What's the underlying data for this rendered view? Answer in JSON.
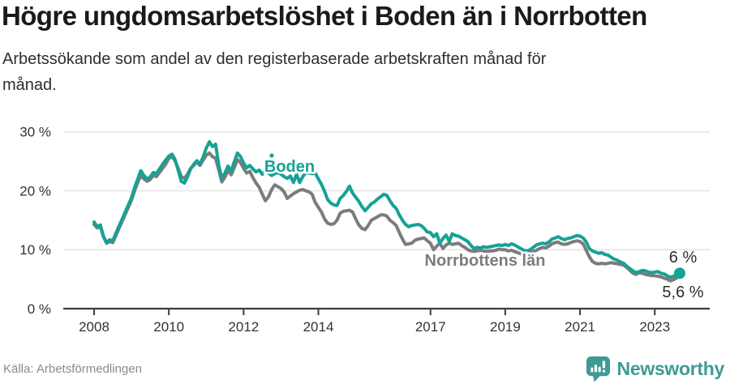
{
  "header": {
    "title": "Högre ungdomsarbetslöshet i Boden än i Norrbotten",
    "subtitle": "Arbetssökande som andel av den registerbaserade arbetskraften månad för månad."
  },
  "footer": {
    "source": "Källa: Arbetsförmedlingen",
    "brand": "Newsworthy"
  },
  "colors": {
    "boden": "#16a294",
    "norrbotten": "#7c7c7c",
    "axis_text": "#333333",
    "annotation_text": "#2e2e2e",
    "gridline": "#e3e3e3",
    "axis_line": "#3c3c3c",
    "brand_teal": "#3f9a94",
    "title_text": "#1a1a1a"
  },
  "chart_data": {
    "type": "line",
    "title": "Högre ungdomsarbetslöshet i Boden än i Norrbotten",
    "subtitle": "Arbetssökande som andel av den registerbaserade arbetskraften månad för månad.",
    "x_start_year": 2008,
    "x_start_month": 1,
    "frequency": "monthly",
    "x_tick_years": [
      2008,
      2010,
      2012,
      2014,
      2017,
      2019,
      2021,
      2023
    ],
    "y_ticks": [
      {
        "value": 30,
        "label": "30 %"
      },
      {
        "value": 20,
        "label": "20 %"
      },
      {
        "value": 10,
        "label": "10 %"
      },
      {
        "value": 0,
        "label": "0 %"
      }
    ],
    "ylim": [
      0,
      30
    ],
    "grid": "horizontal",
    "legend": "inline-labels",
    "series": [
      {
        "name": "Norrbottens län",
        "color": "#7c7c7c",
        "end_label": "5,6 %",
        "end_value": 5.6,
        "values": [
          14.3,
          13.7,
          13.9,
          12.2,
          11.1,
          11.4,
          11.2,
          12.4,
          13.6,
          14.8,
          16.0,
          17.2,
          18.4,
          20.0,
          21.4,
          22.6,
          22.0,
          21.6,
          21.9,
          22.6,
          22.4,
          23.1,
          23.8,
          24.5,
          25.5,
          25.8,
          25.1,
          23.8,
          22.4,
          22.1,
          22.8,
          23.8,
          24.3,
          24.9,
          24.3,
          25.2,
          26.0,
          26.4,
          25.8,
          25.5,
          23.6,
          21.5,
          22.3,
          23.4,
          22.7,
          23.9,
          25.3,
          24.8,
          23.8,
          23.0,
          23.3,
          22.2,
          21.3,
          20.6,
          19.4,
          18.3,
          19.0,
          20.2,
          21.0,
          20.7,
          20.4,
          19.8,
          18.7,
          19.1,
          19.5,
          19.8,
          20.1,
          20.2,
          20.0,
          19.8,
          19.4,
          18.0,
          17.2,
          16.4,
          15.2,
          14.5,
          14.3,
          14.4,
          15.0,
          16.2,
          16.5,
          16.6,
          16.7,
          16.4,
          15.2,
          14.2,
          13.6,
          13.4,
          14.1,
          15.0,
          15.3,
          15.6,
          15.9,
          15.9,
          15.7,
          15.0,
          14.6,
          14.1,
          12.9,
          11.8,
          10.9,
          11.0,
          11.1,
          11.6,
          11.8,
          11.9,
          12.0,
          11.5,
          11.1,
          10.0,
          10.6,
          11.1,
          10.2,
          10.8,
          11.1,
          10.9,
          11.0,
          11.1,
          10.7,
          10.4,
          10.0,
          9.8,
          9.7,
          9.8,
          9.9,
          9.8,
          9.7,
          9.8,
          9.8,
          9.9,
          10.1,
          10.0,
          10.0,
          9.8,
          9.9,
          9.7,
          9.5,
          9.3,
          9.2,
          9.3,
          9.5,
          9.7,
          9.9,
          10.2,
          10.4,
          10.3,
          10.6,
          11.0,
          11.2,
          11.3,
          11.0,
          10.9,
          11.0,
          11.2,
          11.4,
          11.5,
          11.4,
          11.0,
          9.9,
          8.8,
          8.0,
          7.7,
          7.6,
          7.7,
          7.6,
          7.7,
          7.8,
          7.7,
          7.6,
          7.5,
          7.4,
          7.0,
          6.5,
          6.0,
          5.8,
          6.1,
          6.0,
          5.8,
          5.7,
          5.6,
          5.6,
          5.5,
          5.4,
          5.2,
          5.0,
          4.7,
          4.9,
          5.2,
          5.6
        ]
      },
      {
        "name": "Boden",
        "color": "#16a294",
        "end_label": "6 %",
        "end_value": 6.0,
        "values": [
          14.7,
          13.9,
          14.2,
          12.3,
          11.2,
          11.7,
          11.5,
          12.8,
          14.0,
          15.2,
          16.4,
          17.6,
          18.8,
          20.5,
          22.0,
          23.4,
          22.6,
          22.0,
          22.3,
          23.1,
          22.9,
          23.7,
          24.5,
          25.2,
          25.9,
          26.2,
          25.3,
          23.5,
          21.6,
          21.3,
          22.4,
          23.7,
          24.5,
          25.1,
          24.5,
          25.7,
          27.2,
          28.3,
          27.5,
          27.9,
          24.4,
          22.1,
          23.0,
          24.2,
          23.3,
          24.9,
          26.4,
          25.8,
          24.7,
          23.9,
          24.3,
          23.7,
          23.2,
          23.5,
          22.8,
          23.4,
          23.0,
          22.6,
          22.9,
          23.1,
          22.8,
          22.4,
          22.1,
          22.5,
          21.4,
          22.8,
          21.4,
          22.4,
          23.1,
          23.0,
          22.9,
          23.0,
          22.0,
          21.1,
          19.9,
          18.5,
          17.9,
          17.6,
          17.5,
          18.7,
          19.2,
          19.9,
          20.8,
          19.6,
          18.9,
          18.2,
          17.3,
          16.6,
          17.2,
          17.8,
          18.1,
          18.6,
          19.0,
          19.4,
          19.2,
          18.3,
          17.5,
          17.0,
          15.9,
          15.0,
          14.3,
          13.9,
          14.1,
          14.2,
          14.3,
          14.1,
          13.6,
          13.0,
          12.9,
          12.2,
          12.7,
          11.1,
          11.9,
          12.5,
          11.4,
          12.7,
          12.4,
          12.3,
          12.0,
          11.7,
          11.4,
          10.7,
          10.2,
          10.4,
          10.3,
          10.5,
          10.4,
          10.5,
          10.6,
          10.7,
          10.8,
          10.7,
          10.9,
          10.7,
          11.0,
          10.8,
          10.5,
          10.2,
          9.9,
          9.8,
          10.0,
          10.4,
          10.8,
          11.0,
          11.1,
          11.0,
          11.3,
          11.8,
          12.0,
          12.2,
          11.9,
          11.7,
          11.9,
          12.0,
          12.2,
          12.4,
          12.3,
          12.0,
          11.3,
          10.2,
          9.8,
          9.6,
          9.4,
          9.5,
          9.2,
          9.1,
          8.7,
          8.4,
          8.2,
          7.9,
          7.7,
          7.2,
          6.8,
          6.4,
          6.1,
          6.3,
          6.5,
          6.4,
          6.2,
          6.1,
          6.2,
          6.3,
          6.0,
          5.9,
          5.6,
          5.3,
          5.5,
          5.8,
          6.0
        ]
      }
    ]
  }
}
